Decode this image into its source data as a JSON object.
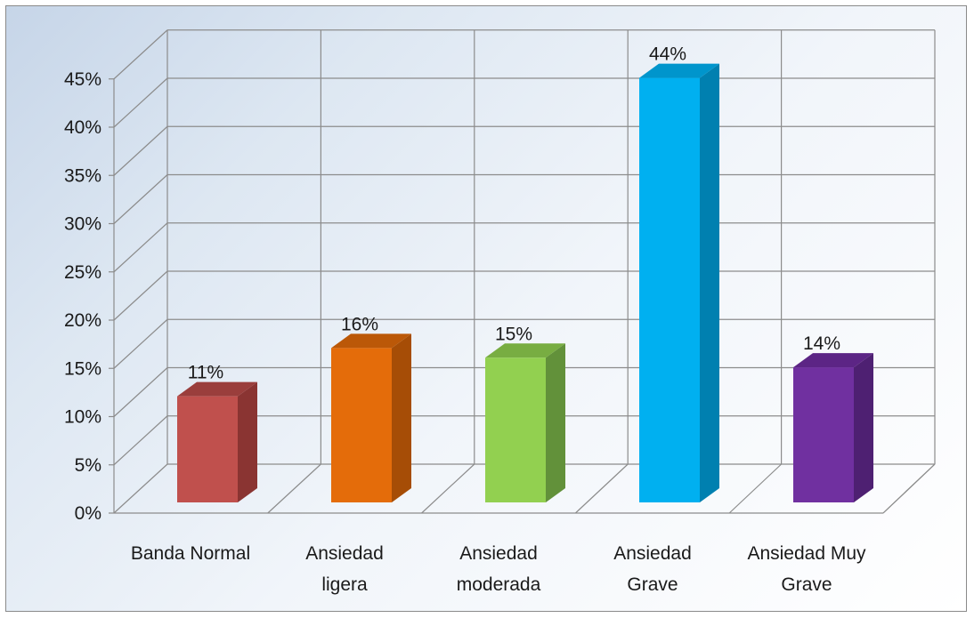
{
  "chart_data": {
    "type": "bar",
    "categories": [
      [
        "Banda Normal"
      ],
      [
        "Ansiedad",
        "ligera"
      ],
      [
        "Ansiedad",
        "moderada"
      ],
      [
        "Ansiedad",
        "Grave"
      ],
      [
        "Ansiedad Muy",
        "Grave"
      ]
    ],
    "values": [
      11,
      16,
      15,
      44,
      14
    ],
    "data_labels": [
      "11%",
      "16%",
      "15%",
      "44%",
      "14%"
    ],
    "colors": [
      "#c0504d",
      "#e46c0a",
      "#92d050",
      "#00b0f0",
      "#7030a0"
    ],
    "side_colors": [
      "#8a3432",
      "#a64d06",
      "#62913a",
      "#0080b0",
      "#4e2072"
    ],
    "top_colors": [
      "#9a3e3c",
      "#bb5808",
      "#78ad42",
      "#0095cc",
      "#5c2585"
    ],
    "ylim": [
      0,
      45
    ],
    "yticks": [
      "0%",
      "5%",
      "10%",
      "15%",
      "20%",
      "25%",
      "30%",
      "35%",
      "40%",
      "45%"
    ],
    "grid": true,
    "three_d": true,
    "title": "",
    "xlabel": "",
    "ylabel": ""
  }
}
